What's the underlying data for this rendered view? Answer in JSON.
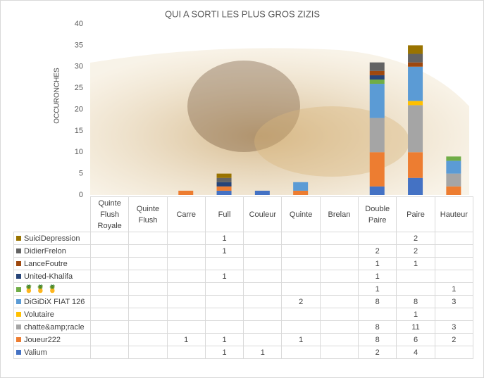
{
  "chart_data": {
    "type": "bar",
    "stacked": true,
    "title": "QUI A SORTI LES PLUS GROS ZIZIS",
    "y_label": "OCCURONCHES",
    "ylim": [
      0,
      40
    ],
    "yticks": [
      0,
      5,
      10,
      15,
      20,
      25,
      30,
      35,
      40
    ],
    "categories": [
      "Quinte Flush Royale",
      "Quinte Flush",
      "Carre",
      "Full",
      "Couleur",
      "Quinte",
      "Brelan",
      "Double Paire",
      "Paire",
      "Hauteur"
    ],
    "series": [
      {
        "name": "SuiciDepression",
        "color": "#997300",
        "values": [
          null,
          null,
          null,
          1,
          null,
          null,
          null,
          null,
          2,
          null
        ]
      },
      {
        "name": "DidierFrelon",
        "color": "#636363",
        "values": [
          null,
          null,
          null,
          1,
          null,
          null,
          null,
          2,
          2,
          null
        ]
      },
      {
        "name": "LanceFoutre",
        "color": "#9e480e",
        "values": [
          null,
          null,
          null,
          null,
          null,
          null,
          null,
          1,
          1,
          null
        ]
      },
      {
        "name": "United-Khalifa",
        "color": "#264478",
        "values": [
          null,
          null,
          null,
          1,
          null,
          null,
          null,
          1,
          null,
          null
        ]
      },
      {
        "name": "🍍 🍍 🍍",
        "color": "#70ad47",
        "values": [
          null,
          null,
          null,
          null,
          null,
          null,
          null,
          1,
          null,
          1
        ]
      },
      {
        "name": "DiGiDiX FIAT 126",
        "color": "#5b9bd5",
        "values": [
          null,
          null,
          null,
          null,
          null,
          2,
          null,
          8,
          8,
          3
        ]
      },
      {
        "name": "Volutaire",
        "color": "#ffc000",
        "values": [
          null,
          null,
          null,
          null,
          null,
          null,
          null,
          null,
          1,
          null
        ]
      },
      {
        "name": "chatte&amp;racle",
        "color": "#a5a5a5",
        "values": [
          null,
          null,
          null,
          null,
          null,
          null,
          null,
          8,
          11,
          3
        ]
      },
      {
        "name": "Joueur222",
        "color": "#ed7d31",
        "values": [
          null,
          null,
          1,
          1,
          null,
          1,
          null,
          8,
          6,
          2
        ]
      },
      {
        "name": "Valium",
        "color": "#4472c4",
        "values": [
          null,
          null,
          null,
          1,
          1,
          null,
          null,
          2,
          4,
          null
        ]
      }
    ]
  }
}
